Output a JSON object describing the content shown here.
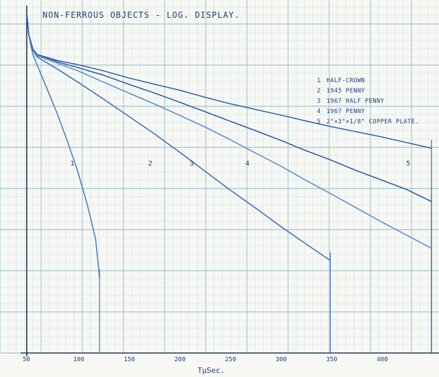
{
  "chart_data": {
    "type": "line",
    "title": "NON-FERROUS OBJECTS - LOG. DISPLAY.",
    "xlabel": "TμSec.",
    "ylabel": "",
    "x_scale": "linear",
    "y_scale": "log",
    "x_ticks": [
      "50",
      "100",
      "150",
      "200",
      "250",
      "300",
      "350",
      "400"
    ],
    "xlim": [
      50,
      450
    ],
    "ylim": [
      0.0015,
      1.2
    ],
    "grid": true,
    "legend": {
      "placement": "right",
      "entries": [
        {
          "num": "1",
          "label": "HALF-CROWN"
        },
        {
          "num": "2",
          "label": "1945 PENNY"
        },
        {
          "num": "3",
          "label": "1967 HALF PENNY"
        },
        {
          "num": "4",
          "label": "1967 PENNY"
        },
        {
          "num": "5",
          "label": "2\"×3\"×1/8\" COPPER PLATE."
        }
      ]
    },
    "series": [
      {
        "name": "1",
        "x": [
          50,
          52,
          56,
          60,
          70,
          80,
          90,
          100,
          110,
          118,
          122
        ],
        "y": [
          1.0,
          0.6,
          0.38,
          0.3,
          0.17,
          0.095,
          0.05,
          0.025,
          0.011,
          0.005,
          0.002
        ]
      },
      {
        "name": "2",
        "x": [
          50,
          52,
          56,
          60,
          80,
          100,
          125,
          150,
          175,
          200,
          225,
          250,
          275,
          300,
          325,
          350
        ],
        "y": [
          1.0,
          0.6,
          0.42,
          0.36,
          0.27,
          0.2,
          0.135,
          0.09,
          0.06,
          0.039,
          0.025,
          0.016,
          0.0105,
          0.0068,
          0.0045,
          0.003
        ]
      },
      {
        "name": "3",
        "x": [
          50,
          52,
          56,
          60,
          80,
          100,
          125,
          150,
          175,
          200,
          225,
          250,
          275,
          300,
          325,
          350,
          400,
          450
        ],
        "y": [
          1.0,
          0.6,
          0.43,
          0.37,
          0.31,
          0.26,
          0.2,
          0.155,
          0.12,
          0.092,
          0.07,
          0.052,
          0.038,
          0.028,
          0.02,
          0.0145,
          0.0075,
          0.004
        ]
      },
      {
        "name": "4",
        "x": [
          50,
          52,
          56,
          60,
          80,
          100,
          125,
          150,
          175,
          200,
          225,
          250,
          275,
          300,
          325,
          350,
          375,
          400,
          425,
          450
        ],
        "y": [
          1.0,
          0.6,
          0.43,
          0.38,
          0.32,
          0.28,
          0.235,
          0.19,
          0.155,
          0.125,
          0.1,
          0.08,
          0.064,
          0.051,
          0.04,
          0.032,
          0.025,
          0.02,
          0.016,
          0.012
        ]
      },
      {
        "name": "5",
        "x": [
          50,
          52,
          56,
          60,
          80,
          100,
          125,
          150,
          175,
          200,
          225,
          250,
          275,
          300,
          325,
          350,
          375,
          400,
          425,
          450
        ],
        "y": [
          1.0,
          0.6,
          0.43,
          0.38,
          0.33,
          0.3,
          0.26,
          0.22,
          0.19,
          0.165,
          0.14,
          0.12,
          0.105,
          0.092,
          0.08,
          0.07,
          0.062,
          0.055,
          0.048,
          0.042
        ]
      }
    ],
    "curve_labels": [
      {
        "text": "1",
        "x": 93,
        "y": 0.028
      },
      {
        "text": "2",
        "x": 170,
        "y": 0.028
      },
      {
        "text": "3",
        "x": 211,
        "y": 0.028
      },
      {
        "text": "4",
        "x": 266,
        "y": 0.028
      },
      {
        "text": "5",
        "x": 425,
        "y": 0.028
      }
    ]
  }
}
